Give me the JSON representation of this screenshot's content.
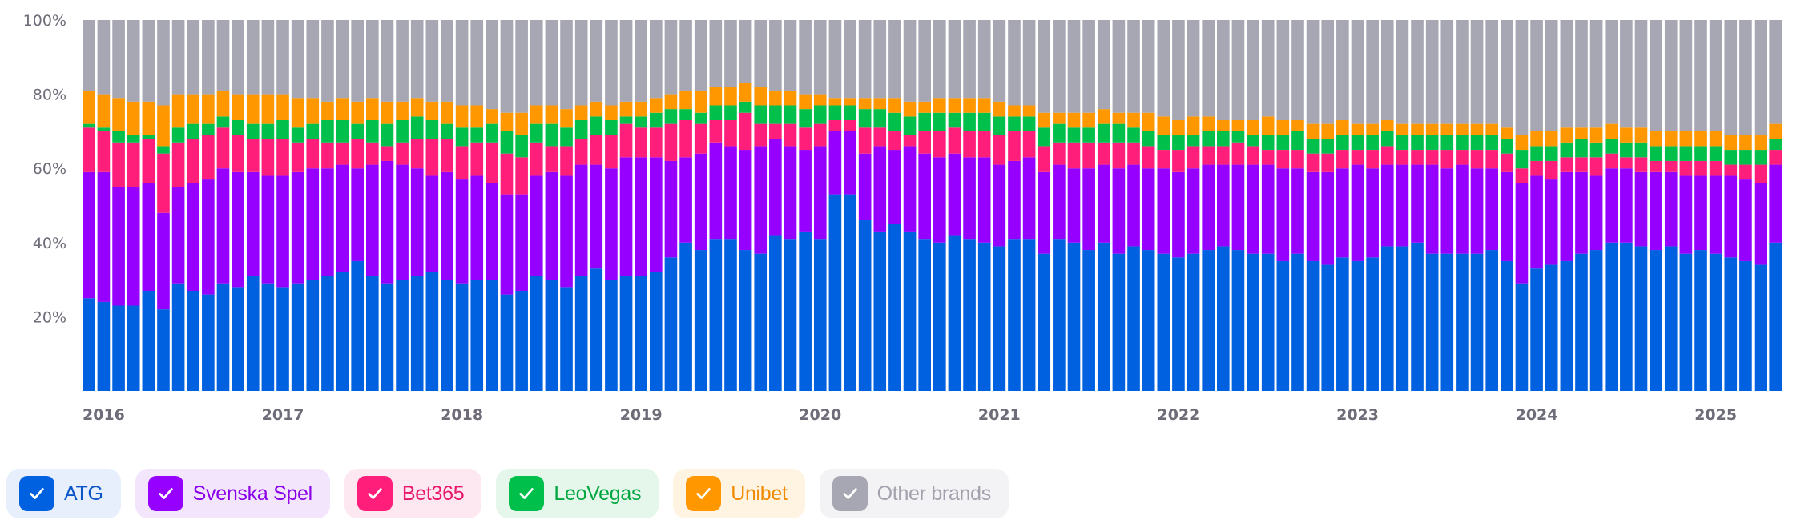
{
  "chart_data": {
    "type": "bar",
    "stacked": true,
    "normalized": true,
    "title": "",
    "xlabel": "",
    "ylabel": "",
    "ylim": [
      0,
      100
    ],
    "yticks": [
      "20%",
      "40%",
      "60%",
      "80%",
      "100%"
    ],
    "ytick_values": [
      20,
      40,
      60,
      80,
      100
    ],
    "xticks": [
      "2016",
      "2017",
      "2018",
      "2019",
      "2020",
      "2021",
      "2022",
      "2023",
      "2024",
      "2025"
    ],
    "xtick_index": [
      0,
      12,
      24,
      36,
      48,
      60,
      72,
      84,
      96,
      108
    ],
    "grid": false,
    "legend_position": "bottom-left",
    "period": "monthly, Jan 2016 – Jun 2025",
    "bar_count": 114,
    "series_cumulative_note": "values are per-brand market share in percent; each bar sums to 100",
    "series": [
      {
        "name": "ATG",
        "color": "#0061e0",
        "values": []
      },
      {
        "name": "Svenska Spel",
        "color": "#9500ff",
        "values": []
      },
      {
        "name": "Bet365",
        "color": "#ff1f7a",
        "values": []
      },
      {
        "name": "LeoVegas",
        "color": "#00c04b",
        "values": []
      },
      {
        "name": "Unibet",
        "color": "#ff9800",
        "values": []
      },
      {
        "name": "Other brands",
        "color": "#a7a6b3",
        "values": []
      }
    ],
    "cumulative_tops": {
      "ATG": [
        25,
        24,
        23,
        23,
        27,
        22,
        29,
        27,
        26,
        29,
        28,
        31,
        29,
        28,
        29,
        30,
        31,
        32,
        35,
        31,
        29,
        30,
        31,
        32,
        30,
        29,
        30,
        30,
        26,
        27,
        31,
        30,
        28,
        31,
        33,
        30,
        31,
        31,
        32,
        36,
        40,
        38,
        41,
        41,
        38,
        37,
        42,
        41,
        43,
        41,
        53,
        53,
        46,
        43,
        45,
        43,
        41,
        40,
        42,
        41,
        40,
        39,
        41,
        41,
        37,
        41,
        40,
        38,
        40,
        37,
        39,
        38,
        37,
        36,
        37,
        38,
        39,
        38,
        37,
        37,
        35,
        37,
        35,
        34,
        36,
        35,
        36,
        39,
        39,
        40,
        37,
        37,
        37,
        37,
        38,
        35,
        29,
        33,
        34,
        35,
        37,
        38,
        40,
        40,
        39,
        38,
        39,
        37,
        38,
        37,
        36,
        35,
        34,
        40
      ],
      "SvenskaSpel": [
        59,
        59,
        55,
        55,
        56,
        48,
        55,
        56,
        57,
        60,
        59,
        59,
        58,
        58,
        59,
        60,
        60,
        61,
        60,
        61,
        62,
        61,
        60,
        58,
        59,
        57,
        58,
        56,
        53,
        53,
        58,
        59,
        58,
        61,
        61,
        60,
        63,
        63,
        63,
        62,
        63,
        64,
        67,
        66,
        65,
        66,
        68,
        66,
        65,
        66,
        70,
        70,
        64,
        66,
        65,
        66,
        64,
        63,
        64,
        63,
        63,
        61,
        62,
        63,
        59,
        61,
        60,
        60,
        61,
        60,
        61,
        60,
        60,
        59,
        60,
        61,
        61,
        61,
        61,
        61,
        60,
        60,
        59,
        59,
        60,
        61,
        60,
        61,
        61,
        61,
        61,
        60,
        61,
        60,
        60,
        59,
        56,
        58,
        57,
        59,
        59,
        58,
        60,
        60,
        59,
        59,
        59,
        58,
        58,
        58,
        58,
        57,
        56,
        61
      ],
      "Bet365": [
        71,
        70,
        67,
        67,
        68,
        64,
        67,
        68,
        69,
        71,
        69,
        68,
        68,
        68,
        67,
        68,
        67,
        67,
        68,
        67,
        66,
        67,
        68,
        68,
        68,
        66,
        67,
        67,
        64,
        63,
        67,
        66,
        66,
        68,
        69,
        69,
        72,
        71,
        71,
        72,
        73,
        72,
        73,
        73,
        75,
        72,
        72,
        72,
        71,
        72,
        73,
        73,
        71,
        71,
        70,
        69,
        70,
        70,
        71,
        70,
        70,
        69,
        70,
        70,
        66,
        67,
        67,
        67,
        67,
        67,
        67,
        66,
        65,
        65,
        66,
        66,
        66,
        67,
        66,
        65,
        65,
        65,
        64,
        64,
        65,
        65,
        65,
        66,
        65,
        65,
        65,
        65,
        65,
        65,
        65,
        64,
        60,
        62,
        62,
        63,
        63,
        63,
        64,
        63,
        63,
        62,
        62,
        62,
        62,
        62,
        61,
        61,
        61,
        65
      ],
      "LeoVegas": [
        72,
        71,
        70,
        69,
        69,
        66,
        71,
        72,
        72,
        74,
        73,
        72,
        72,
        73,
        71,
        72,
        73,
        73,
        72,
        73,
        72,
        73,
        74,
        73,
        72,
        71,
        71,
        72,
        70,
        69,
        72,
        72,
        71,
        73,
        74,
        73,
        74,
        74,
        75,
        76,
        76,
        75,
        77,
        77,
        78,
        77,
        77,
        77,
        76,
        77,
        77,
        77,
        76,
        76,
        75,
        74,
        75,
        75,
        75,
        75,
        75,
        74,
        74,
        74,
        71,
        72,
        71,
        71,
        72,
        72,
        71,
        70,
        69,
        69,
        69,
        70,
        70,
        70,
        69,
        69,
        69,
        70,
        68,
        68,
        69,
        69,
        69,
        70,
        69,
        69,
        69,
        69,
        69,
        69,
        69,
        68,
        65,
        66,
        66,
        67,
        68,
        67,
        68,
        67,
        67,
        66,
        66,
        66,
        66,
        66,
        65,
        65,
        65,
        68
      ],
      "Unibet": [
        81,
        80,
        79,
        78,
        78,
        77,
        80,
        80,
        80,
        81,
        80,
        80,
        80,
        80,
        79,
        79,
        78,
        79,
        78,
        79,
        78,
        78,
        79,
        78,
        78,
        77,
        77,
        76,
        75,
        75,
        77,
        77,
        76,
        77,
        78,
        77,
        78,
        78,
        79,
        80,
        81,
        81,
        82,
        82,
        83,
        82,
        81,
        81,
        80,
        80,
        79,
        79,
        79,
        79,
        79,
        78,
        78,
        79,
        79,
        79,
        79,
        78,
        77,
        77,
        75,
        75,
        75,
        75,
        76,
        75,
        75,
        75,
        74,
        73,
        74,
        74,
        73,
        73,
        73,
        74,
        73,
        73,
        72,
        72,
        73,
        72,
        72,
        73,
        72,
        72,
        72,
        72,
        72,
        72,
        72,
        71,
        69,
        70,
        70,
        71,
        71,
        71,
        72,
        71,
        71,
        70,
        70,
        70,
        70,
        70,
        69,
        69,
        69,
        72
      ]
    }
  },
  "legend": {
    "items": [
      {
        "label": "ATG",
        "checked": true,
        "color": "#0061e0",
        "bg": "#e6effb",
        "text": "#0a56c7"
      },
      {
        "label": "Svenska Spel",
        "checked": true,
        "color": "#9500ff",
        "bg": "#f3e6fc",
        "text": "#8a00e8"
      },
      {
        "label": "Bet365",
        "checked": true,
        "color": "#ff1f7a",
        "bg": "#fde8f1",
        "text": "#e8176c"
      },
      {
        "label": "LeoVegas",
        "checked": true,
        "color": "#00c04b",
        "bg": "#e4f7ea",
        "text": "#00a640"
      },
      {
        "label": "Unibet",
        "checked": true,
        "color": "#ff9800",
        "bg": "#fff3e2",
        "text": "#f08a00"
      },
      {
        "label": "Other brands",
        "checked": true,
        "color": "#a7a6b3",
        "bg": "#f3f3f5",
        "text": "#a2a1ad"
      }
    ]
  }
}
